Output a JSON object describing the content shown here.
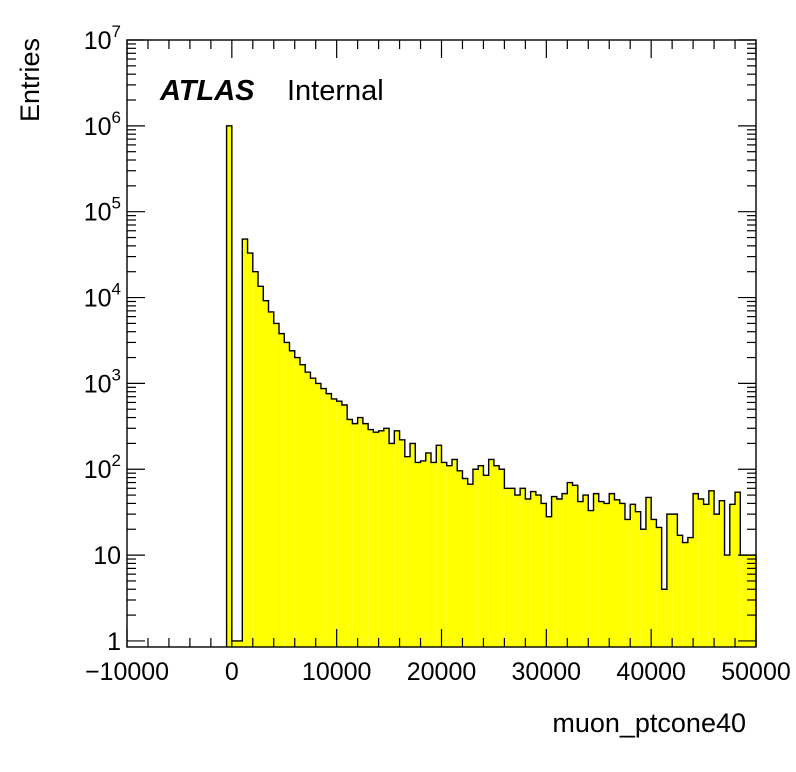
{
  "chart_data": {
    "type": "bar",
    "subtype": "histogram",
    "xlabel": "muon_ptcone40",
    "ylabel": "Entries",
    "label_bold": "ATLAS",
    "label_status": "Internal",
    "xlim": [
      -10000,
      50000
    ],
    "ylim": [
      0.85,
      10000000
    ],
    "yscale": "log",
    "grid": false,
    "legend": "none",
    "x_ticks": [
      "−10000",
      "0",
      "10000",
      "20000",
      "30000",
      "40000",
      "50000"
    ],
    "y_ticks": [
      {
        "value": 1,
        "base": "1",
        "exp": ""
      },
      {
        "value": 10,
        "base": "10",
        "exp": ""
      },
      {
        "value": 100,
        "base": "10",
        "exp": "2"
      },
      {
        "value": 1000,
        "base": "10",
        "exp": "3"
      },
      {
        "value": 10000,
        "base": "10",
        "exp": "4"
      },
      {
        "value": 100000,
        "base": "10",
        "exp": "5"
      },
      {
        "value": 1000000,
        "base": "10",
        "exp": "6"
      },
      {
        "value": 10000000,
        "base": "10",
        "exp": "7"
      }
    ],
    "fill_color": "#ffff00",
    "line_color": "#000000",
    "bin_width": 500,
    "bins_start": [
      -500,
      0,
      500,
      1000,
      1500,
      2000,
      2500,
      3000,
      3500,
      4000,
      4500,
      5000,
      5500,
      6000,
      6500,
      7000,
      7500,
      8000,
      8500,
      9000,
      9500,
      10000,
      10500,
      11000,
      11500,
      12000,
      12500,
      13000,
      13500,
      14000,
      14500,
      15000,
      15500,
      16000,
      16500,
      17000,
      17500,
      18000,
      18500,
      19000,
      19500,
      20000,
      20500,
      21000,
      21500,
      22000,
      22500,
      23000,
      23500,
      24000,
      24500,
      25000,
      25500,
      26000,
      26500,
      27000,
      27500,
      28000,
      28500,
      29000,
      29500,
      30000,
      30500,
      31000,
      31500,
      32000,
      32500,
      33000,
      33500,
      34000,
      34500,
      35000,
      35500,
      36000,
      36500,
      37000,
      37500,
      38000,
      38500,
      39000,
      39500,
      40000,
      40500,
      41000,
      41500,
      42000,
      42500,
      43000,
      43500,
      44000,
      44500,
      45000,
      45500,
      46000,
      46500,
      47000,
      47500,
      48000,
      48500,
      49000,
      49500
    ],
    "values": [
      1000000,
      1,
      1,
      48000,
      33000,
      20000,
      13500,
      9200,
      6800,
      5000,
      3800,
      3000,
      2400,
      2000,
      1650,
      1350,
      1150,
      1000,
      870,
      760,
      660,
      620,
      560,
      380,
      340,
      400,
      340,
      290,
      270,
      280,
      300,
      200,
      280,
      220,
      140,
      200,
      120,
      125,
      155,
      120,
      190,
      120,
      110,
      130,
      96,
      78,
      67,
      100,
      110,
      85,
      130,
      110,
      100,
      60,
      60,
      50,
      60,
      45,
      55,
      50,
      40,
      28,
      48,
      45,
      52,
      70,
      65,
      42,
      50,
      33,
      52,
      42,
      40,
      52,
      44,
      40,
      26,
      39,
      32,
      20,
      47,
      26,
      21,
      4,
      30,
      30,
      17,
      14,
      16,
      52,
      45,
      39,
      56,
      30,
      43,
      10,
      39,
      54,
      10,
      10,
      10
    ]
  }
}
